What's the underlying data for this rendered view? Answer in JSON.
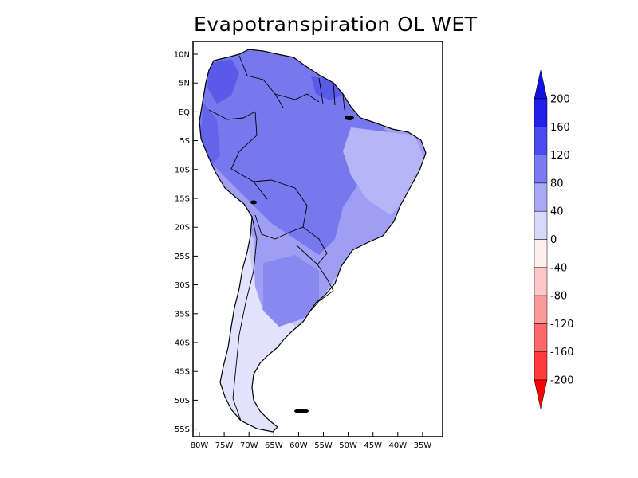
{
  "title": "Evapotranspiration OL WET",
  "map": {
    "lat_ticks": [
      "10N",
      "5N",
      "EQ",
      "5S",
      "10S",
      "15S",
      "20S",
      "25S",
      "30S",
      "35S",
      "40S",
      "45S",
      "50S",
      "55S"
    ],
    "lon_ticks": [
      "80W",
      "75W",
      "70W",
      "65W",
      "60W",
      "55W",
      "50W",
      "45W",
      "40W",
      "35W"
    ],
    "region": "South America"
  },
  "colorbar": {
    "levels": [
      "200",
      "160",
      "120",
      "80",
      "40",
      "0",
      "-40",
      "-80",
      "-120",
      "-160",
      "-200"
    ],
    "colors": [
      "#2020e8",
      "#4a4af0",
      "#7a7af2",
      "#a8a8f6",
      "#d8d8fa",
      "#fff0f0",
      "#ffc8c8",
      "#ff9a9a",
      "#ff6868",
      "#ff3a3a"
    ],
    "top_arrow_color": "#1010e0",
    "bottom_arrow_color": "#ff0000"
  },
  "fill_colors": {
    "very_high": "#5a5ae8",
    "high": "#7878ee",
    "mid": "#9e9ef4",
    "low": "#c8c8f8",
    "lowest": "#e2e2fc"
  }
}
